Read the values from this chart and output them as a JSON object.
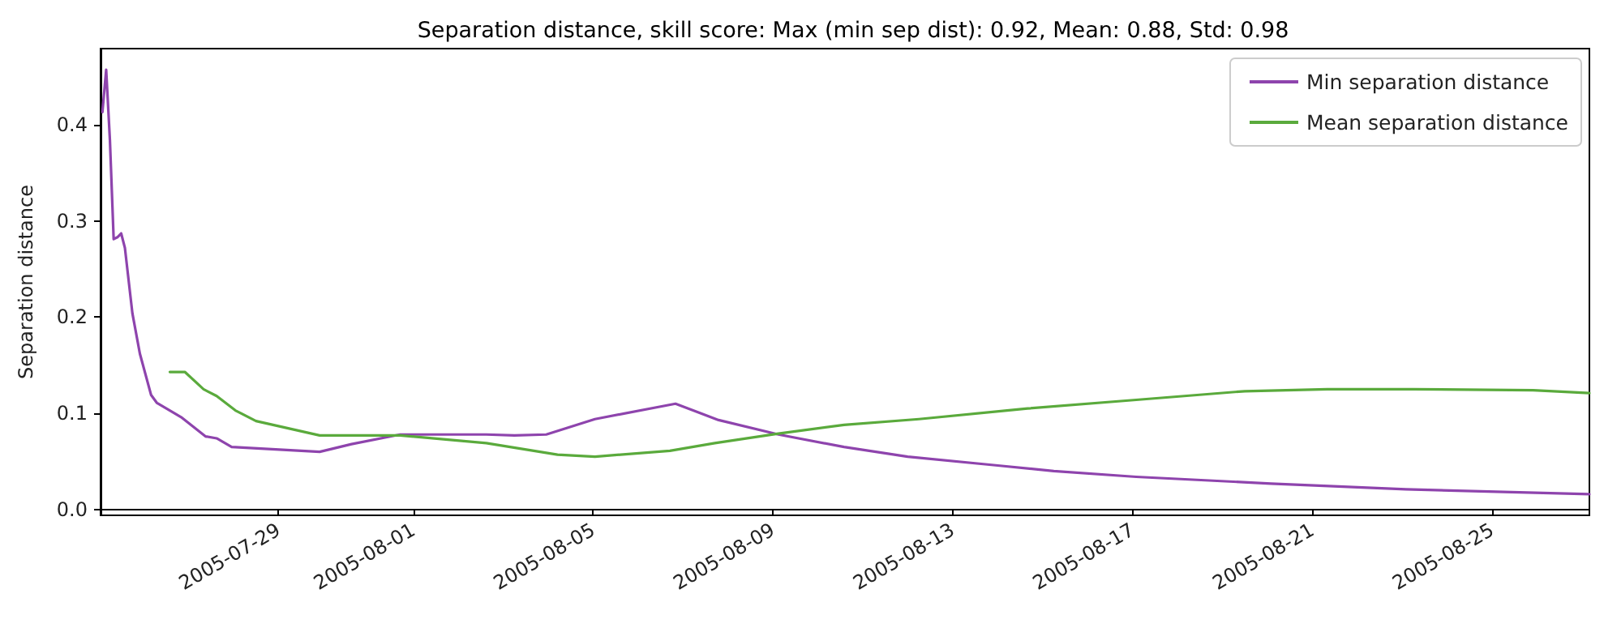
{
  "chart_data": {
    "type": "line",
    "title": "Separation distance, skill score: Max (min sep dist): 0.92, Mean: 0.88, Std: 0.98",
    "ylabel": "Separation distance",
    "series": [
      {
        "name": "Min separation distance",
        "color": "#8e44ad",
        "x": [
          "2005-07-25T02:00",
          "2005-07-25T04:00",
          "2005-07-25T06:00",
          "2005-07-25T08:00",
          "2005-07-25T10:00",
          "2005-07-25T12:00",
          "2005-07-25T14:00",
          "2005-07-25T18:00",
          "2005-07-25T22:00",
          "2005-07-26T04:00",
          "2005-07-26T07:00",
          "2005-07-26T20:00",
          "2005-07-27T09:00",
          "2005-07-27T15:00",
          "2005-07-27T23:00",
          "2005-07-29T22:00",
          "2005-07-30T15:00",
          "2005-07-31T17:00",
          "2005-08-02T15:00",
          "2005-08-03T06:00",
          "2005-08-03T23:00",
          "2005-08-05T01:00",
          "2005-08-06T20:00",
          "2005-08-07T19:00",
          "2005-08-09T03:00",
          "2005-08-10T14:00",
          "2005-08-12T00:00",
          "2005-08-13T23:00",
          "2005-08-15T06:00",
          "2005-08-17T02:00",
          "2005-08-20T02:00",
          "2005-08-23T02:00",
          "2005-08-27T04:00"
        ],
        "values": [
          0.413,
          0.457,
          0.384,
          0.281,
          0.283,
          0.287,
          0.272,
          0.204,
          0.162,
          0.119,
          0.111,
          0.096,
          0.076,
          0.074,
          0.065,
          0.06,
          0.068,
          0.078,
          0.078,
          0.077,
          0.078,
          0.094,
          0.11,
          0.093,
          0.078,
          0.065,
          0.055,
          0.046,
          0.04,
          0.034,
          0.027,
          0.021,
          0.016
        ]
      },
      {
        "name": "Mean separation distance",
        "color": "#5aaa3c",
        "x": [
          "2005-07-26T14:00",
          "2005-07-26T22:00",
          "2005-07-27T08:00",
          "2005-07-27T15:00",
          "2005-07-28T01:00",
          "2005-07-28T12:00",
          "2005-07-29T22:00",
          "2005-07-31T17:00",
          "2005-08-02T15:00",
          "2005-08-04T05:00",
          "2005-08-05T01:00",
          "2005-08-06T17:00",
          "2005-08-07T17:00",
          "2005-08-09T03:00",
          "2005-08-10T14:00",
          "2005-08-12T06:00",
          "2005-08-14T16:00",
          "2005-08-17T02:00",
          "2005-08-19T12:00",
          "2005-08-21T08:00",
          "2005-08-23T06:00",
          "2005-08-25T22:00",
          "2005-08-27T04:00"
        ],
        "values": [
          0.143,
          0.143,
          0.125,
          0.118,
          0.103,
          0.092,
          0.077,
          0.077,
          0.069,
          0.057,
          0.055,
          0.061,
          0.069,
          0.079,
          0.088,
          0.094,
          0.105,
          0.114,
          0.123,
          0.125,
          0.125,
          0.124,
          0.121
        ]
      }
    ],
    "xlim": [
      "2005-07-25T01:00",
      "2005-08-27T04:00"
    ],
    "xticks": [
      "2005-07-29",
      "2005-08-01",
      "2005-08-05",
      "2005-08-09",
      "2005-08-13",
      "2005-08-17",
      "2005-08-21",
      "2005-08-25"
    ],
    "ylim": [
      -0.006,
      0.479
    ],
    "yticks": [
      {
        "value": 0,
        "label": "0.0"
      },
      0.1,
      0.2,
      0.3,
      0.4
    ],
    "legend": "top right",
    "marker": "none"
  }
}
